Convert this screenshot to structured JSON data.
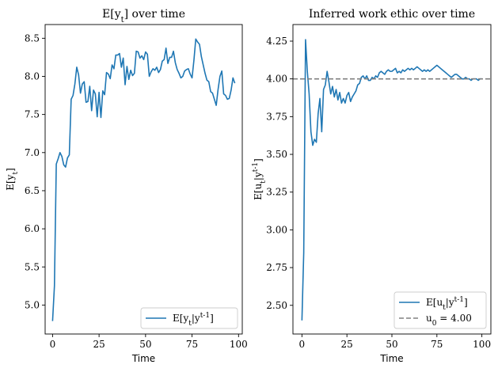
{
  "chart_data": [
    {
      "type": "line",
      "title": "E[y_t] over time",
      "xlabel": "Time",
      "ylabel": "E[y_t]",
      "xlim": [
        -4,
        102
      ],
      "ylim": [
        4.62,
        8.68
      ],
      "xticks": [
        0,
        25,
        50,
        75,
        100
      ],
      "xtick_labels": [
        "0",
        "25",
        "50",
        "75",
        "100"
      ],
      "yticks": [
        5.0,
        5.5,
        6.0,
        6.5,
        7.0,
        7.5,
        8.0,
        8.5
      ],
      "ytick_labels": [
        "5.0",
        "5.5",
        "6.0",
        "6.5",
        "7.0",
        "7.5",
        "8.0",
        "8.5"
      ],
      "legend_position": "lower-right",
      "series": [
        {
          "name": "E[y_t|y^{t-1}]",
          "color": "#1f77b4",
          "style": "solid",
          "x": [
            0,
            1,
            2,
            3,
            4,
            5,
            6,
            7,
            8,
            9,
            10,
            11,
            12,
            13,
            14,
            15,
            16,
            17,
            18,
            19,
            20,
            21,
            22,
            23,
            24,
            25,
            26,
            27,
            28,
            29,
            30,
            31,
            32,
            33,
            34,
            35,
            36,
            37,
            38,
            39,
            40,
            41,
            42,
            43,
            44,
            45,
            46,
            47,
            48,
            49,
            50,
            51,
            52,
            53,
            54,
            55,
            56,
            57,
            58,
            59,
            60,
            61,
            62,
            63,
            64,
            65,
            66,
            67,
            68,
            69,
            70,
            71,
            72,
            73,
            74,
            75,
            76,
            77,
            78,
            79,
            80,
            81,
            82,
            83,
            84,
            85,
            86,
            87,
            88,
            89,
            90,
            91,
            92,
            93,
            94,
            95,
            96,
            97,
            98
          ],
          "y": [
            4.79,
            5.25,
            6.85,
            6.92,
            7.0,
            6.95,
            6.84,
            6.81,
            6.93,
            6.97,
            7.7,
            7.75,
            7.9,
            8.12,
            8.02,
            7.78,
            7.9,
            7.93,
            7.66,
            7.67,
            7.87,
            7.55,
            7.82,
            7.77,
            7.47,
            7.79,
            7.46,
            7.81,
            7.76,
            8.05,
            8.03,
            7.97,
            8.15,
            8.1,
            8.28,
            8.28,
            8.3,
            8.12,
            8.24,
            7.89,
            8.13,
            7.96,
            8.08,
            8.01,
            8.04,
            8.33,
            8.32,
            8.24,
            8.27,
            8.22,
            8.32,
            8.29,
            8.0,
            8.06,
            8.1,
            8.08,
            8.12,
            8.05,
            8.09,
            8.2,
            8.22,
            8.37,
            8.17,
            8.25,
            8.25,
            8.33,
            8.18,
            8.09,
            8.04,
            7.98,
            8.0,
            8.07,
            8.09,
            8.1,
            8.03,
            7.98,
            8.21,
            8.49,
            8.45,
            8.42,
            8.26,
            8.15,
            8.04,
            7.95,
            7.93,
            7.8,
            7.78,
            7.7,
            7.62,
            7.83,
            8.0,
            8.07,
            7.77,
            7.75,
            7.7,
            7.71,
            7.82,
            7.98,
            7.91
          ]
        }
      ]
    },
    {
      "type": "line",
      "title": "Inferred work ethic over time",
      "xlabel": "Time",
      "ylabel": "E[u_t|y^{t-1}]",
      "xlim": [
        -5,
        105
      ],
      "ylim": [
        2.31,
        4.36
      ],
      "xticks": [
        0,
        25,
        50,
        75,
        100
      ],
      "xtick_labels": [
        "0",
        "25",
        "50",
        "75",
        "100"
      ],
      "yticks": [
        2.5,
        2.75,
        3.0,
        3.25,
        3.5,
        3.75,
        4.0,
        4.25
      ],
      "ytick_labels": [
        "2.50",
        "2.75",
        "3.00",
        "3.25",
        "3.50",
        "3.75",
        "4.00",
        "4.25"
      ],
      "legend_position": "lower-right",
      "series": [
        {
          "name": "E[u_t|y^{t-1}]",
          "color": "#1f77b4",
          "style": "solid",
          "x": [
            0,
            1,
            2,
            3,
            4,
            5,
            6,
            7,
            8,
            9,
            10,
            11,
            12,
            13,
            14,
            15,
            16,
            17,
            18,
            19,
            20,
            21,
            22,
            23,
            24,
            25,
            26,
            27,
            28,
            29,
            30,
            31,
            32,
            33,
            34,
            35,
            36,
            37,
            38,
            39,
            40,
            41,
            42,
            43,
            44,
            45,
            46,
            47,
            48,
            49,
            50,
            51,
            52,
            53,
            54,
            55,
            56,
            57,
            58,
            59,
            60,
            61,
            62,
            63,
            64,
            65,
            66,
            67,
            68,
            69,
            70,
            71,
            72,
            73,
            74,
            75,
            76,
            77,
            78,
            79,
            80,
            81,
            82,
            83,
            84,
            85,
            86,
            87,
            88,
            89,
            90,
            91,
            92,
            93,
            94,
            95,
            96,
            97,
            98,
            99,
            100
          ],
          "y": [
            2.4,
            2.85,
            4.26,
            4.05,
            3.9,
            3.65,
            3.56,
            3.6,
            3.58,
            3.77,
            3.87,
            3.65,
            3.93,
            3.96,
            4.05,
            3.98,
            3.9,
            3.95,
            3.88,
            3.93,
            3.86,
            3.91,
            3.84,
            3.87,
            3.84,
            3.89,
            3.91,
            3.85,
            3.88,
            3.9,
            3.92,
            3.96,
            3.97,
            4.01,
            4.02,
            4.0,
            4.02,
            3.99,
            3.99,
            4.01,
            4.0,
            4.02,
            4.01,
            4.04,
            4.05,
            4.04,
            4.03,
            4.05,
            4.06,
            4.05,
            4.05,
            4.06,
            4.07,
            4.04,
            4.05,
            4.04,
            4.06,
            4.05,
            4.06,
            4.07,
            4.06,
            4.07,
            4.06,
            4.07,
            4.08,
            4.07,
            4.06,
            4.05,
            4.06,
            4.05,
            4.06,
            4.05,
            4.06,
            4.07,
            4.08,
            4.09,
            4.08,
            4.07,
            4.06,
            4.05,
            4.04,
            4.03,
            4.02,
            4.01,
            4.02,
            4.03,
            4.03,
            4.02,
            4.01,
            4.0,
            4.0,
            4.01,
            4.0,
            4.0,
            3.99,
            4.0,
            4.0,
            4.0,
            3.99,
            4.0,
            4.0
          ]
        },
        {
          "name": "u_0 = 4.00",
          "color": "#808080",
          "style": "dashed",
          "x": [
            -5,
            105
          ],
          "y": [
            4.0,
            4.0
          ]
        }
      ]
    }
  ]
}
